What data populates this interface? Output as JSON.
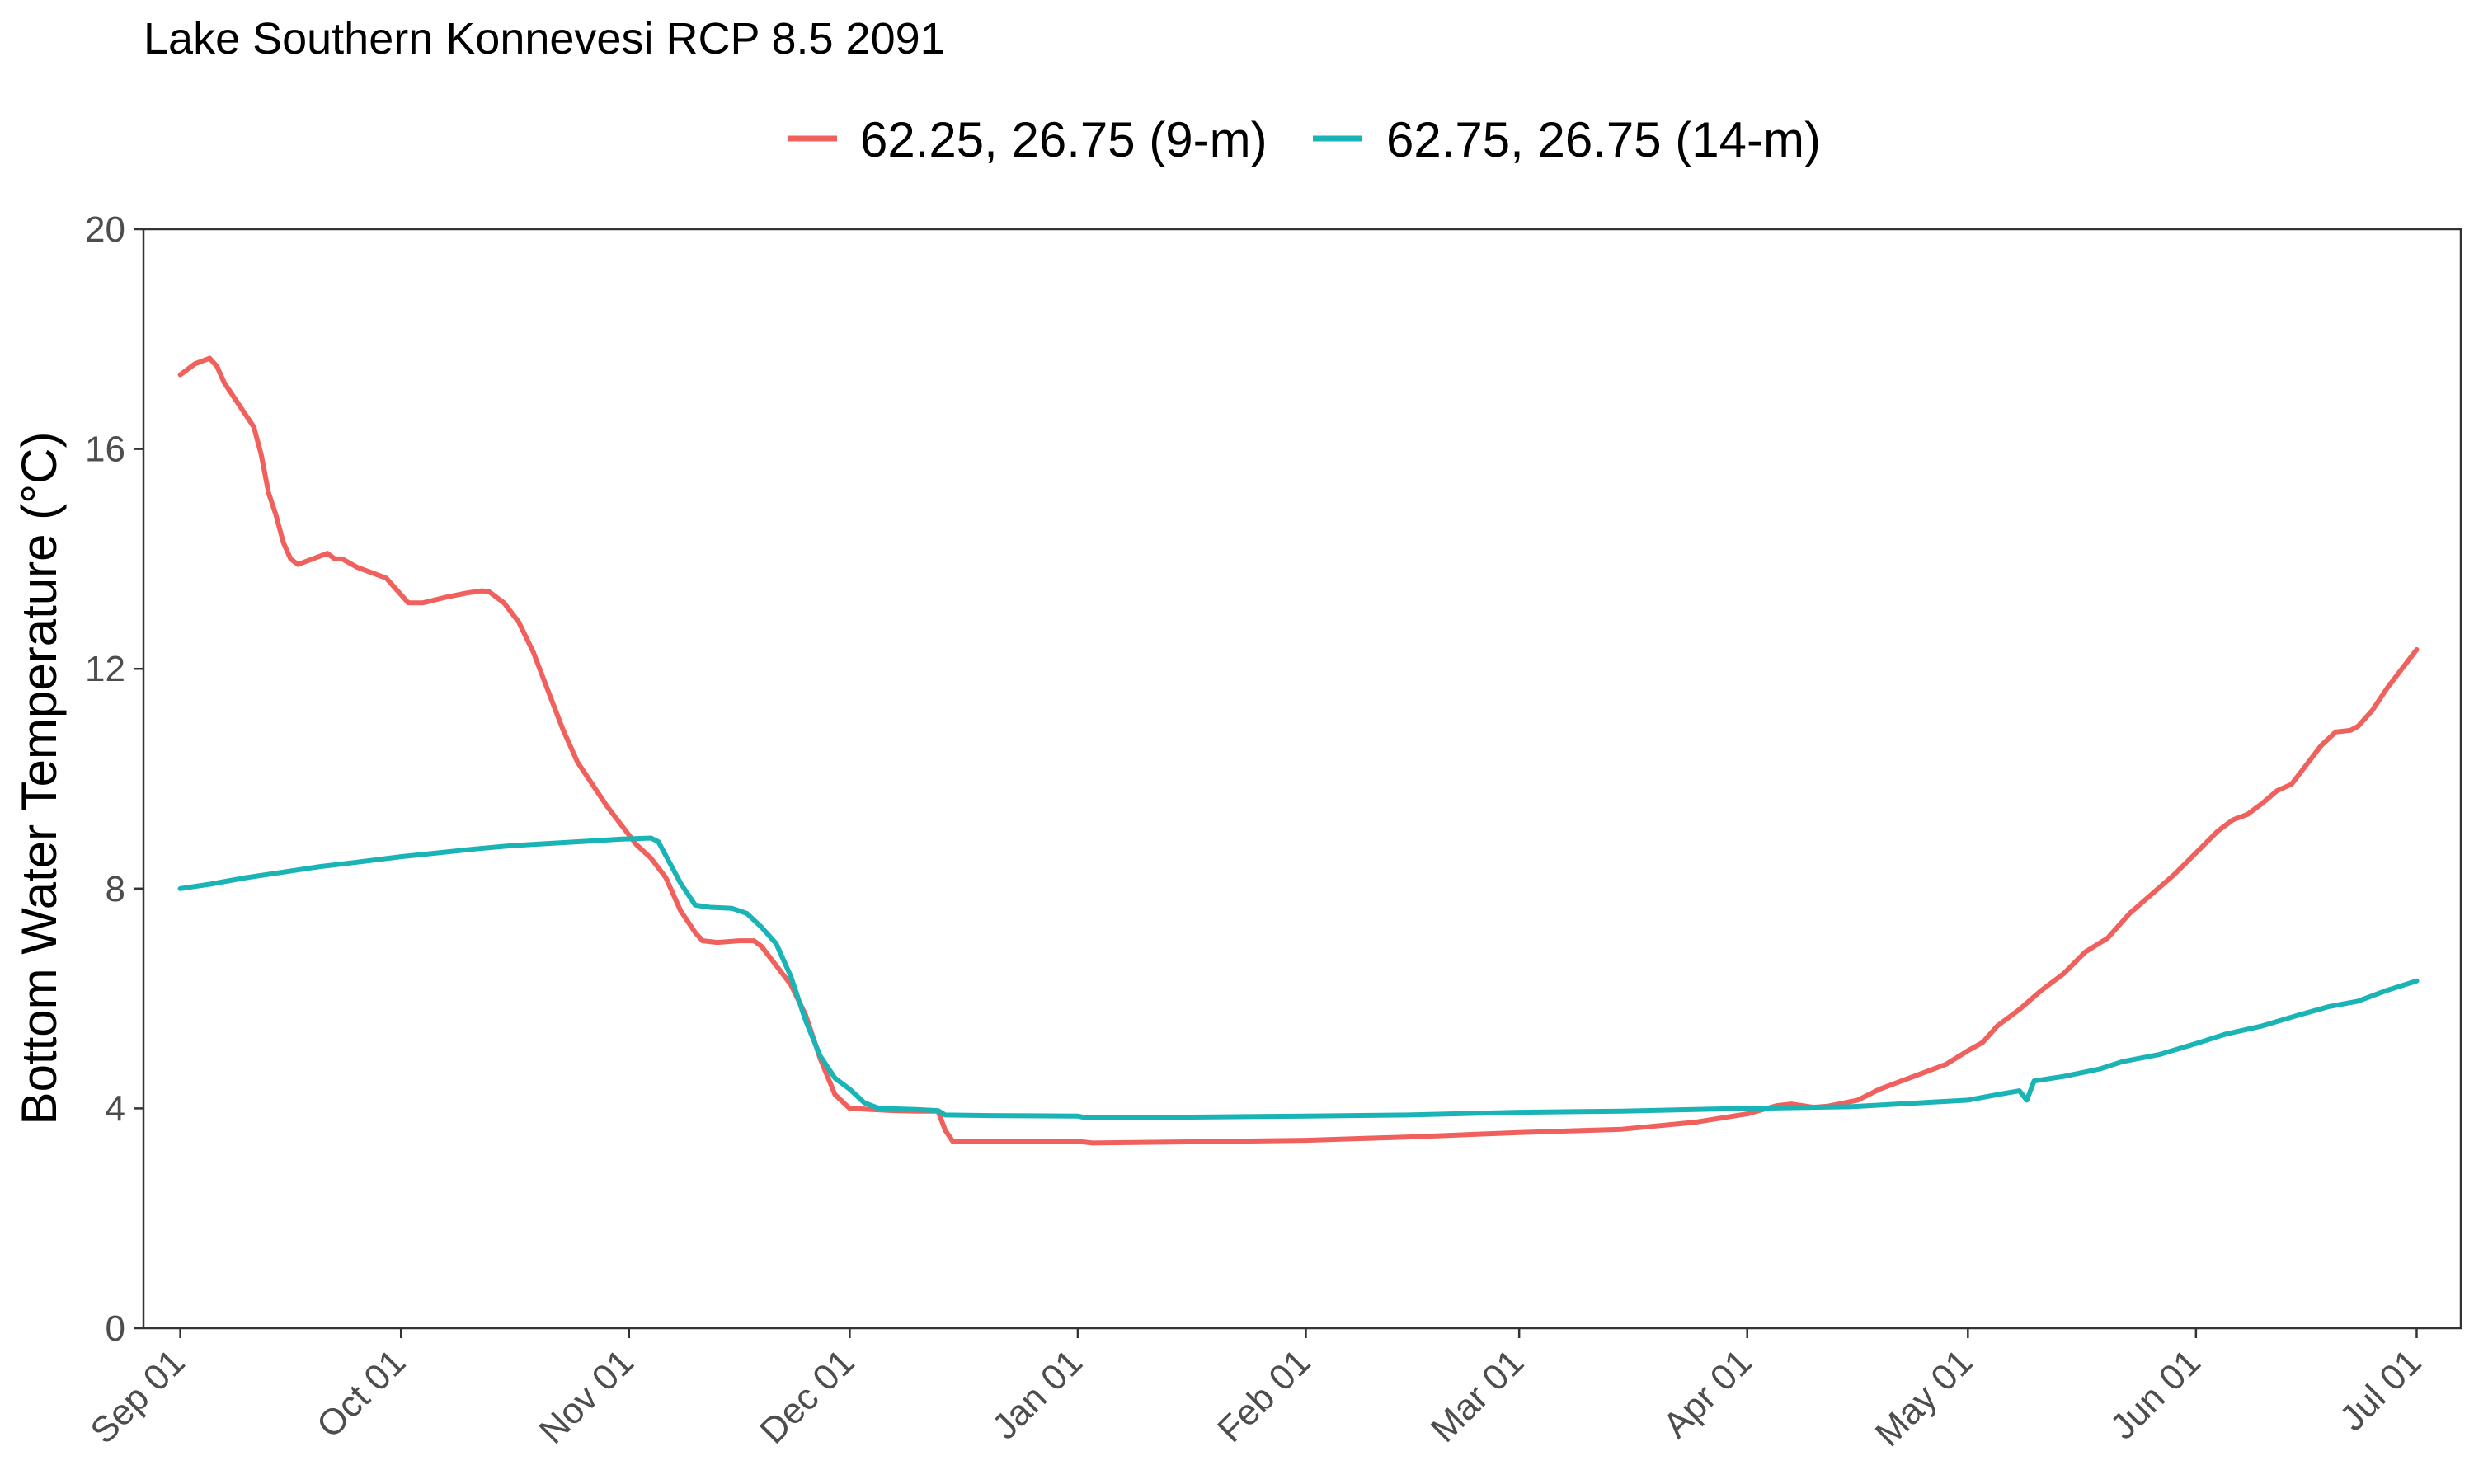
{
  "chart_data": {
    "type": "line",
    "title": "Lake Southern Konnevesi RCP 8.5 2091",
    "xlabel": "",
    "ylabel": "Bottom Water Temperature (°C)",
    "ylim": [
      0,
      20
    ],
    "yticks": [
      "0",
      "4",
      "8",
      "12",
      "16",
      "20"
    ],
    "xlim": [
      "2091-08-27",
      "2092-07-07"
    ],
    "xticks": [
      {
        "date": "2091-09-01",
        "label": "Sep 01"
      },
      {
        "date": "2091-10-01",
        "label": "Oct 01"
      },
      {
        "date": "2091-11-01",
        "label": "Nov 01"
      },
      {
        "date": "2091-12-01",
        "label": "Dec 01"
      },
      {
        "date": "2092-01-01",
        "label": "Jan 01"
      },
      {
        "date": "2092-02-01",
        "label": "Feb 01"
      },
      {
        "date": "2092-03-01",
        "label": "Mar 01"
      },
      {
        "date": "2092-04-01",
        "label": "Apr 01"
      },
      {
        "date": "2092-05-01",
        "label": "May 01"
      },
      {
        "date": "2092-06-01",
        "label": "Jun 01"
      },
      {
        "date": "2092-07-01",
        "label": "Jul 01"
      }
    ],
    "legend_position": "top",
    "grid": false,
    "series": [
      {
        "name": "62.25, 26.75 (9-m)",
        "color": "#F0605C",
        "points": [
          [
            "2091-09-01",
            17.35
          ],
          [
            "2091-09-03",
            17.55
          ],
          [
            "2091-09-05",
            17.65
          ],
          [
            "2091-09-06",
            17.5
          ],
          [
            "2091-09-07",
            17.2
          ],
          [
            "2091-09-09",
            16.8
          ],
          [
            "2091-09-11",
            16.4
          ],
          [
            "2091-09-12",
            15.9
          ],
          [
            "2091-09-13",
            15.2
          ],
          [
            "2091-09-14",
            14.8
          ],
          [
            "2091-09-15",
            14.3
          ],
          [
            "2091-09-16",
            14.0
          ],
          [
            "2091-09-17",
            13.9
          ],
          [
            "2091-09-19",
            14.0
          ],
          [
            "2091-09-21",
            14.1
          ],
          [
            "2091-09-22",
            14.0
          ],
          [
            "2091-09-23",
            14.0
          ],
          [
            "2091-09-25",
            13.85
          ],
          [
            "2091-09-27",
            13.75
          ],
          [
            "2091-09-29",
            13.65
          ],
          [
            "2091-10-01",
            13.35
          ],
          [
            "2091-10-02",
            13.2
          ],
          [
            "2091-10-04",
            13.2
          ],
          [
            "2091-10-07",
            13.3
          ],
          [
            "2091-10-10",
            13.38
          ],
          [
            "2091-10-12",
            13.42
          ],
          [
            "2091-10-13",
            13.4
          ],
          [
            "2091-10-15",
            13.2
          ],
          [
            "2091-10-17",
            12.85
          ],
          [
            "2091-10-19",
            12.3
          ],
          [
            "2091-10-21",
            11.6
          ],
          [
            "2091-10-23",
            10.9
          ],
          [
            "2091-10-25",
            10.3
          ],
          [
            "2091-10-27",
            9.9
          ],
          [
            "2091-10-29",
            9.5
          ],
          [
            "2091-10-31",
            9.15
          ],
          [
            "2091-11-02",
            8.8
          ],
          [
            "2091-11-04",
            8.55
          ],
          [
            "2091-11-06",
            8.2
          ],
          [
            "2091-11-08",
            7.6
          ],
          [
            "2091-11-10",
            7.2
          ],
          [
            "2091-11-11",
            7.05
          ],
          [
            "2091-11-13",
            7.02
          ],
          [
            "2091-11-16",
            7.05
          ],
          [
            "2091-11-18",
            7.05
          ],
          [
            "2091-11-19",
            6.95
          ],
          [
            "2091-11-21",
            6.6
          ],
          [
            "2091-11-23",
            6.25
          ],
          [
            "2091-11-25",
            5.7
          ],
          [
            "2091-11-27",
            4.9
          ],
          [
            "2091-11-29",
            4.25
          ],
          [
            "2091-12-01",
            4.0
          ],
          [
            "2091-12-04",
            3.98
          ],
          [
            "2091-12-07",
            3.96
          ],
          [
            "2091-12-10",
            3.95
          ],
          [
            "2091-12-13",
            3.95
          ],
          [
            "2091-12-14",
            3.6
          ],
          [
            "2091-12-15",
            3.4
          ],
          [
            "2091-12-20",
            3.4
          ],
          [
            "2091-12-25",
            3.4
          ],
          [
            "2092-01-01",
            3.4
          ],
          [
            "2092-01-03",
            3.37
          ],
          [
            "2092-01-15",
            3.39
          ],
          [
            "2092-02-01",
            3.42
          ],
          [
            "2092-02-15",
            3.48
          ],
          [
            "2092-03-01",
            3.56
          ],
          [
            "2092-03-15",
            3.62
          ],
          [
            "2092-03-25",
            3.75
          ],
          [
            "2092-04-01",
            3.9
          ],
          [
            "2092-04-05",
            4.05
          ],
          [
            "2092-04-07",
            4.08
          ],
          [
            "2092-04-10",
            4.02
          ],
          [
            "2092-04-12",
            4.04
          ],
          [
            "2092-04-16",
            4.15
          ],
          [
            "2092-04-19",
            4.35
          ],
          [
            "2092-04-22",
            4.5
          ],
          [
            "2092-04-25",
            4.65
          ],
          [
            "2092-04-28",
            4.8
          ],
          [
            "2092-05-01",
            5.05
          ],
          [
            "2092-05-03",
            5.2
          ],
          [
            "2092-05-05",
            5.5
          ],
          [
            "2092-05-08",
            5.8
          ],
          [
            "2092-05-11",
            6.15
          ],
          [
            "2092-05-14",
            6.45
          ],
          [
            "2092-05-17",
            6.85
          ],
          [
            "2092-05-20",
            7.1
          ],
          [
            "2092-05-23",
            7.55
          ],
          [
            "2092-05-26",
            7.9
          ],
          [
            "2092-05-29",
            8.25
          ],
          [
            "2092-06-01",
            8.65
          ],
          [
            "2092-06-04",
            9.05
          ],
          [
            "2092-06-06",
            9.25
          ],
          [
            "2092-06-08",
            9.35
          ],
          [
            "2092-06-10",
            9.55
          ],
          [
            "2092-06-12",
            9.78
          ],
          [
            "2092-06-14",
            9.9
          ],
          [
            "2092-06-16",
            10.25
          ],
          [
            "2092-06-18",
            10.6
          ],
          [
            "2092-06-20",
            10.85
          ],
          [
            "2092-06-22",
            10.88
          ],
          [
            "2092-06-23",
            10.95
          ],
          [
            "2092-06-25",
            11.25
          ],
          [
            "2092-06-27",
            11.65
          ],
          [
            "2092-06-29",
            12.0
          ],
          [
            "2092-07-01",
            12.35
          ]
        ]
      },
      {
        "name": "62.75, 26.75 (14-m)",
        "color": "#1AB4B6",
        "points": [
          [
            "2091-09-01",
            8.0
          ],
          [
            "2091-09-05",
            8.08
          ],
          [
            "2091-09-10",
            8.2
          ],
          [
            "2091-09-15",
            8.3
          ],
          [
            "2091-09-20",
            8.4
          ],
          [
            "2091-09-25",
            8.48
          ],
          [
            "2091-10-01",
            8.58
          ],
          [
            "2091-10-06",
            8.65
          ],
          [
            "2091-10-11",
            8.72
          ],
          [
            "2091-10-16",
            8.78
          ],
          [
            "2091-10-21",
            8.82
          ],
          [
            "2091-10-26",
            8.86
          ],
          [
            "2091-10-31",
            8.9
          ],
          [
            "2091-11-04",
            8.92
          ],
          [
            "2091-11-05",
            8.85
          ],
          [
            "2091-11-06",
            8.6
          ],
          [
            "2091-11-08",
            8.1
          ],
          [
            "2091-11-09",
            7.9
          ],
          [
            "2091-11-10",
            7.7
          ],
          [
            "2091-11-12",
            7.66
          ],
          [
            "2091-11-15",
            7.64
          ],
          [
            "2091-11-17",
            7.55
          ],
          [
            "2091-11-19",
            7.3
          ],
          [
            "2091-11-21",
            7.0
          ],
          [
            "2091-11-23",
            6.4
          ],
          [
            "2091-11-25",
            5.6
          ],
          [
            "2091-11-27",
            4.95
          ],
          [
            "2091-11-29",
            4.55
          ],
          [
            "2091-12-01",
            4.35
          ],
          [
            "2091-12-03",
            4.1
          ],
          [
            "2091-12-05",
            4.0
          ],
          [
            "2091-12-10",
            3.98
          ],
          [
            "2091-12-13",
            3.96
          ],
          [
            "2091-12-14",
            3.88
          ],
          [
            "2091-12-20",
            3.87
          ],
          [
            "2092-01-01",
            3.86
          ],
          [
            "2092-01-02",
            3.83
          ],
          [
            "2092-01-15",
            3.84
          ],
          [
            "2092-02-01",
            3.86
          ],
          [
            "2092-02-15",
            3.88
          ],
          [
            "2092-03-01",
            3.93
          ],
          [
            "2092-03-15",
            3.95
          ],
          [
            "2092-04-01",
            4.0
          ],
          [
            "2092-04-15",
            4.03
          ],
          [
            "2092-05-01",
            4.15
          ],
          [
            "2092-05-05",
            4.25
          ],
          [
            "2092-05-08",
            4.32
          ],
          [
            "2092-05-09",
            4.15
          ],
          [
            "2092-05-10",
            4.5
          ],
          [
            "2092-05-14",
            4.58
          ],
          [
            "2092-05-19",
            4.72
          ],
          [
            "2092-05-22",
            4.85
          ],
          [
            "2092-05-27",
            4.98
          ],
          [
            "2092-06-01",
            5.18
          ],
          [
            "2092-06-05",
            5.35
          ],
          [
            "2092-06-10",
            5.5
          ],
          [
            "2092-06-15",
            5.7
          ],
          [
            "2092-06-19",
            5.85
          ],
          [
            "2092-06-23",
            5.95
          ],
          [
            "2092-06-27",
            6.15
          ],
          [
            "2092-07-01",
            6.32
          ]
        ]
      }
    ]
  }
}
